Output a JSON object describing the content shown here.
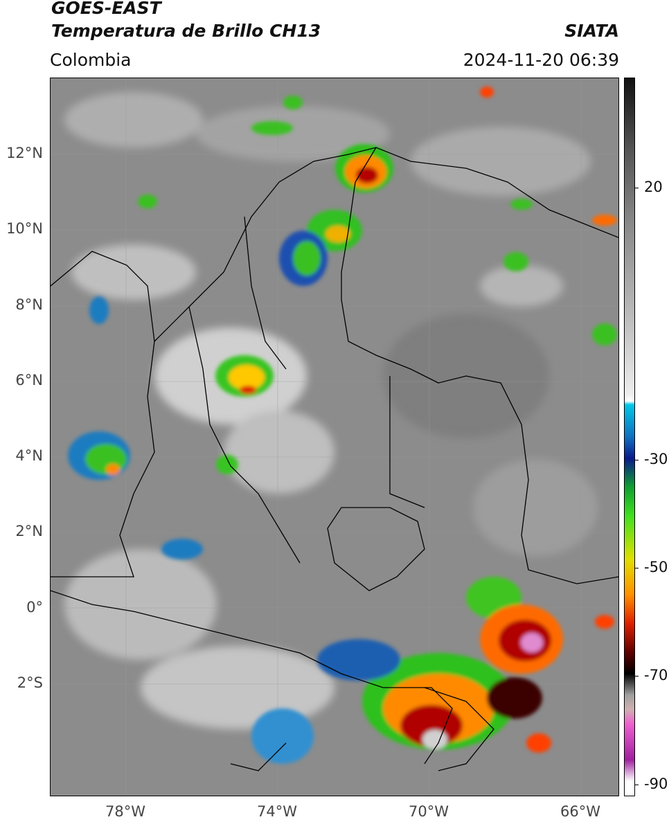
{
  "header": {
    "satellite": "GOES-EAST",
    "product": "Temperatura de Brillo CH13",
    "agency": "SIATA",
    "region": "Colombia",
    "timestamp": "2024-11-20 06:39"
  },
  "axes": {
    "lat_labels": [
      "12°N",
      "10°N",
      "8°N",
      "6°N",
      "4°N",
      "2°N",
      "0°",
      "2°S"
    ],
    "lon_labels": [
      "78°W",
      "74°W",
      "70°W",
      "66°W"
    ]
  },
  "colorbar": {
    "labels": [
      "20",
      "-30",
      "-50",
      "-70",
      "-90"
    ],
    "unit_range": [
      -92,
      35
    ]
  },
  "colors": {
    "background_gray": "#8a8a8a",
    "border": "#000000"
  }
}
